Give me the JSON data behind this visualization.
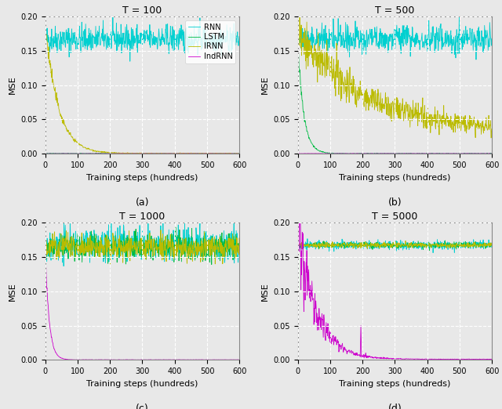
{
  "titles": [
    "T = 100",
    "T = 500",
    "T = 1000",
    "T = 5000"
  ],
  "subtitles": [
    "(a)",
    "(b)",
    "(c)",
    "(d)"
  ],
  "xlabel": "Training steps (hundreds)",
  "ylabel": "MSE",
  "ylim": [
    0.0,
    0.2
  ],
  "xlim": [
    0,
    600
  ],
  "xticks": [
    0,
    100,
    200,
    300,
    400,
    500,
    600
  ],
  "yticks": [
    0.0,
    0.05,
    0.1,
    0.15,
    0.2
  ],
  "colors": {
    "RNN": "#00d0d0",
    "LSTM": "#00bb44",
    "IRNN": "#bbbb00",
    "IndRNN": "#cc00cc"
  },
  "legend_labels": [
    "RNN",
    "LSTM",
    "IRNN",
    "IndRNN"
  ],
  "figsize": [
    6.4,
    5.22
  ],
  "dpi": 100,
  "background_color": "#e8e8e8",
  "seed": 42
}
